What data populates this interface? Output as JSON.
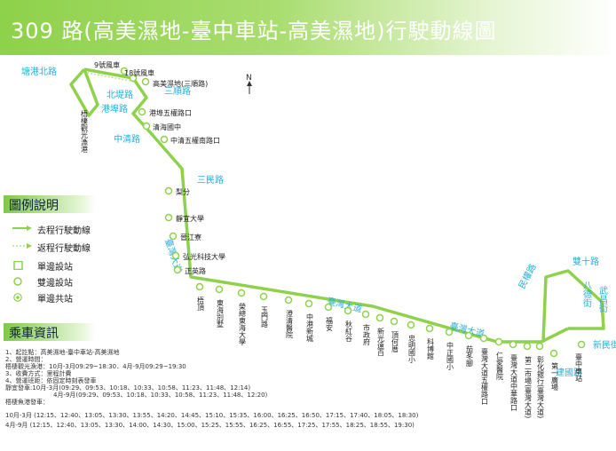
{
  "header": {
    "title": "309 路(高美濕地-臺中車站-高美濕地)行駛動線圖"
  },
  "compass": "N",
  "roads": {
    "tanggang_n": "塘港北路",
    "beidi": "北堤路",
    "sanshun_top": "三順路",
    "ganggan": "港埠路",
    "zhongqing": "中清路",
    "sanmin": "三民路",
    "taiwan_bl": "臺灣大道",
    "taiwan_m1": "臺灣大道",
    "taiwan_m2": "臺灣大道",
    "minquan": "民權路",
    "shuangshi": "雙十路",
    "badeng": "八德街",
    "wuchang": "武昌街",
    "xinmin": "新民街",
    "jianguo": "建國路"
  },
  "stops_top": {
    "s9": "9號風車",
    "s18": "18號風車",
    "gaomei": "高美濕地(三順路)",
    "wuquan": "港埠五權路口",
    "qinghai": "清海國中",
    "zhongqing_wq": "中清五權南路口",
    "liwen": "梨分",
    "jingyi": "靜宜大學",
    "jianjiang": "晉江寮",
    "hongguang": "弘光科技大學",
    "zhengying": "正英路",
    "wetland": "梧棲觀光漁港"
  },
  "stops_vertical": {
    "v1": "梧頂",
    "v2": "東海別墅",
    "v3": "榮總東海大學",
    "v4": "玉門路",
    "v5": "澄清醫院",
    "v6": "中港新城",
    "v7": "福安",
    "v8": "秋紅谷",
    "v9": "市政府",
    "v10": "新光遠百",
    "v11": "頂何厝",
    "v12": "忠明國小",
    "v13": "科博館",
    "v14": "中正國小",
    "v15": "茄苳腳",
    "v16": "臺灣大道五權路口",
    "v17": "仁愛醫院",
    "v18": "臺灣大道中華路口",
    "v19": "第二市場(臺灣大道)",
    "v20": "彰化銀行(臺灣大道)",
    "v21": "第一廣場",
    "v22": "臺中車站"
  },
  "legend": {
    "title": "圖例說明",
    "outbound": "去程行駛動線",
    "return": "返程行駛動線",
    "single_stop": "單邊設站",
    "double_stop": "雙邊設站",
    "shared_stop": "單邊共站"
  },
  "info": {
    "title": "乘車資訊",
    "lines": [
      "1、起訖點：高美濕地-臺中車站-高美濕地",
      "2、營運時間：",
      "梧棲觀光漁港：10月-3月09:29~18:30．4月-9月09:29~19:30",
      "3、收費方式：里程計費",
      "4、營運班距：依固定時刻表發車",
      "靜宜發車:10月-3月(09:29、09:53、10:18、10:33、10:58、11:23、11:48、12:14)",
      "4月-9月(09:29、09:53、10:18、10:33、10:58、11:23、11:48、12:20)",
      "梧棲魚港發車：",
      "10月-3月 (12:15、12:40、13:05、13:30、13:55、14:20、14:45、15:10、15:35、16:00、16:25、16:50、17:15、17:40、18:05、18:30)",
      "4月-9月 (12:15、12:40、13:05、13:30、14:00、14:30、15:00、15:25、15:55、16:25、16:55、17:25、17:55、18:25、18:55、19:30)"
    ]
  },
  "colors": {
    "route": "#8ed14a",
    "road_label": "#2aaed6"
  }
}
